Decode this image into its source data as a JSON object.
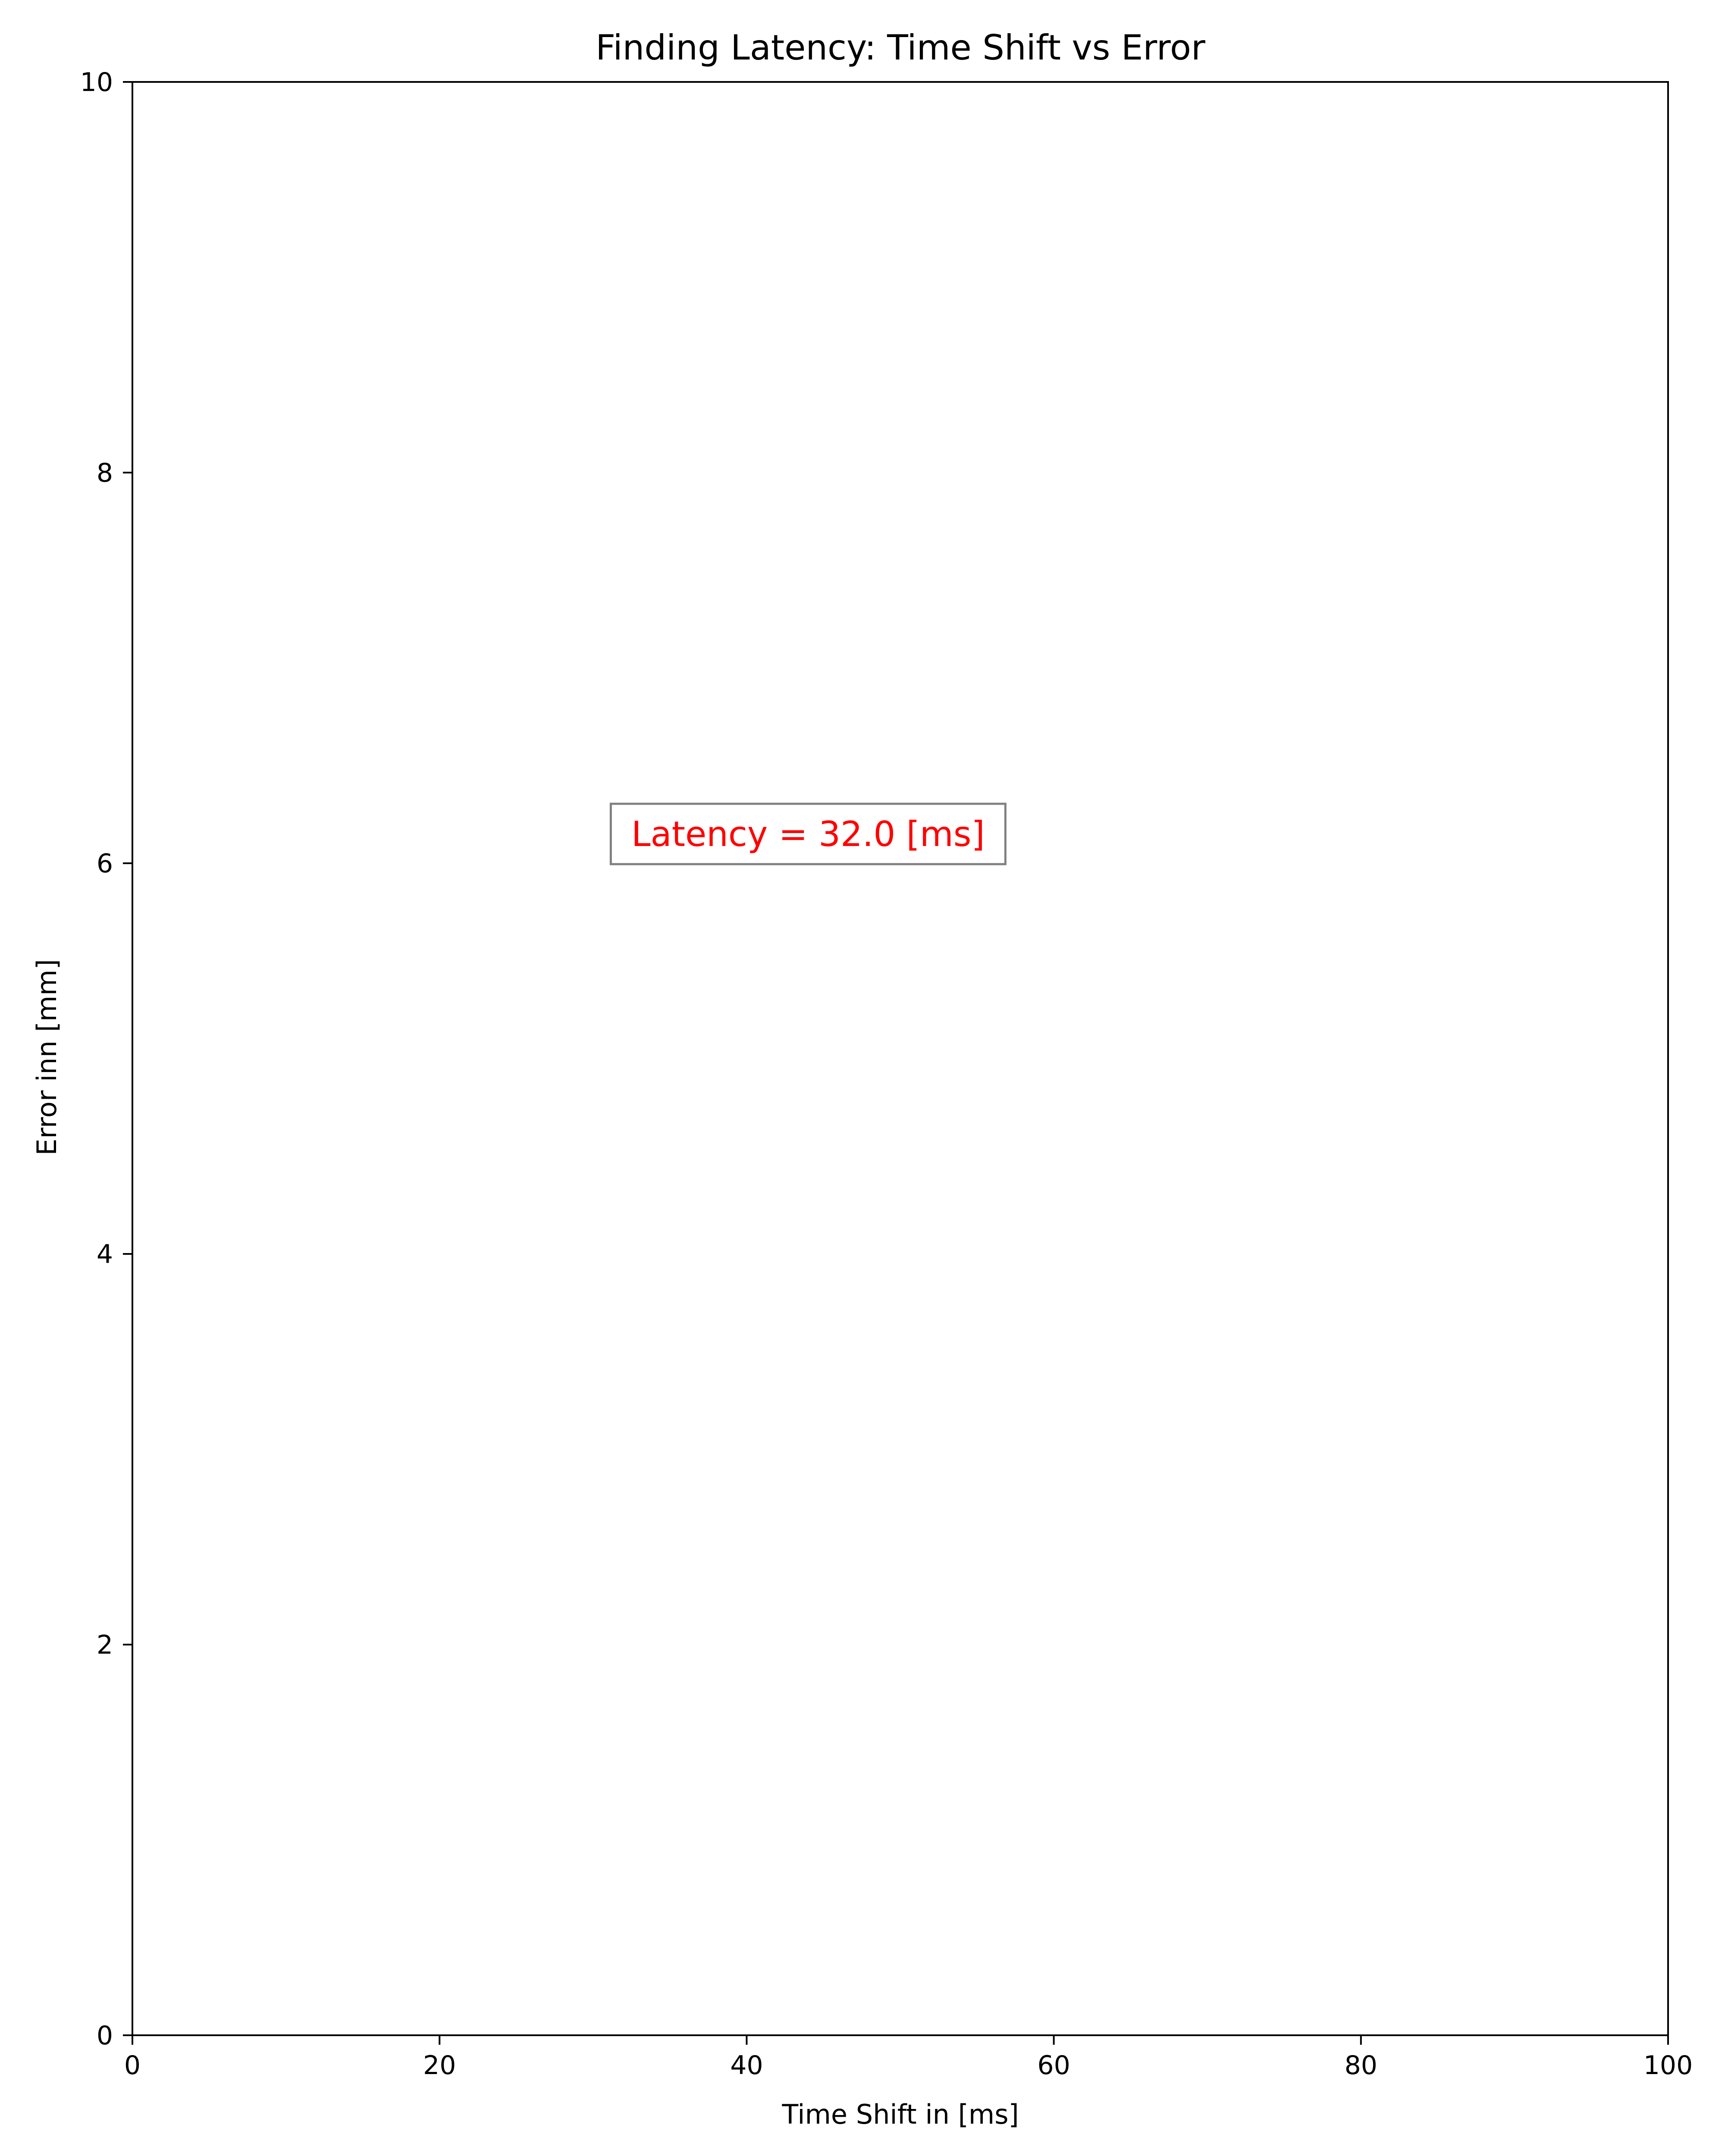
{
  "chart_data": {
    "type": "line",
    "title": "Finding Latency: Time Shift vs Error",
    "xlabel": "Time Shift in [ms]",
    "ylabel": "Error inn [mm]",
    "xlim": [
      0,
      100
    ],
    "ylim": [
      0,
      10
    ],
    "x_ticks": [
      0,
      20,
      40,
      60,
      80,
      100
    ],
    "x_tick_labels": [
      "0",
      "20",
      "40",
      "60",
      "80",
      "100"
    ],
    "y_ticks": [
      0,
      2,
      4,
      6,
      8,
      10
    ],
    "y_tick_labels": [
      "0",
      "2",
      "4",
      "6",
      "8",
      "10"
    ],
    "series": [],
    "grid": false,
    "annotation": {
      "text": "Latency = 32.0 [ms]",
      "x": 44,
      "y": 6.15,
      "color": "#ff0000",
      "box_edge_color": "#808080"
    }
  }
}
